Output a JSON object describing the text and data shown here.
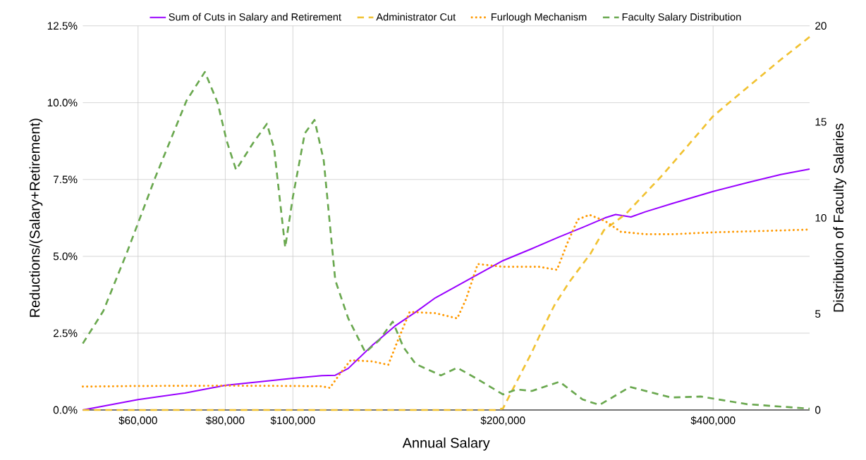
{
  "chart_data": {
    "type": "line",
    "xlabel": "Annual Salary",
    "ylabel": "Reductions/(Salary+Retirement)",
    "y2label": "Distribution of Faculty Salaries",
    "log": "x",
    "grid": true,
    "legend": "top",
    "marker": "none",
    "xlim": [
      50000,
      550000
    ],
    "xticks": [
      {
        "value": 60000,
        "label": "$60,000"
      },
      {
        "value": 80000,
        "label": "$80,000"
      },
      {
        "value": 100000,
        "label": "$100,000"
      },
      {
        "value": 200000,
        "label": "$200,000"
      },
      {
        "value": 400000,
        "label": "$400,000"
      }
    ],
    "ylim": [
      0,
      12.5
    ],
    "yticks": [
      {
        "value": 0,
        "label": "0.0%"
      },
      {
        "value": 2.5,
        "label": "2.5%"
      },
      {
        "value": 5,
        "label": "5.0%"
      },
      {
        "value": 7.5,
        "label": "7.5%"
      },
      {
        "value": 10,
        "label": "10.0%"
      },
      {
        "value": 12.5,
        "label": "12.5%"
      }
    ],
    "y2lim": [
      0,
      20
    ],
    "y2ticks": [
      0,
      5,
      10,
      15,
      20
    ],
    "series": [
      {
        "name": "Sum of Cuts in Salary and Retirement",
        "color": "#9900ff",
        "line_style": "solid",
        "x": [
          50000,
          60000,
          70000,
          80000,
          90000,
          100000,
          110000,
          115000,
          120000,
          130000,
          140000,
          150000,
          160000,
          180000,
          200000,
          220000,
          240000,
          260000,
          280000,
          290000,
          305000,
          320000,
          350000,
          400000,
          450000,
          500000,
          550000
        ],
        "values": [
          0,
          0.34,
          0.55,
          0.8,
          0.92,
          1.03,
          1.12,
          1.13,
          1.35,
          2.11,
          2.73,
          3.19,
          3.65,
          4.29,
          4.86,
          5.25,
          5.62,
          5.94,
          6.25,
          6.36,
          6.28,
          6.45,
          6.72,
          7.11,
          7.41,
          7.66,
          7.84
        ]
      },
      {
        "name": "Administrator Cut",
        "color": "#f1c232",
        "line_style": "dashed",
        "x": [
          50000,
          100000,
          195000,
          200000,
          203000,
          220000,
          228000,
          237000,
          249000,
          267000,
          279000,
          300000,
          339000,
          400000,
          448000,
          500000,
          550000
        ],
        "values": [
          0,
          0,
          0,
          0.05,
          0.34,
          1.88,
          2.64,
          3.41,
          4.17,
          5.09,
          5.85,
          6.38,
          7.66,
          9.56,
          10.5,
          11.4,
          12.14
        ]
      },
      {
        "name": "Furlough Mechanism",
        "color": "#ff9900",
        "line_style": "dotted",
        "x": [
          50000,
          60000,
          80000,
          100000,
          110000,
          113000,
          117000,
          121000,
          130000,
          137000,
          141000,
          147000,
          160000,
          172000,
          177000,
          184000,
          200000,
          225000,
          239000,
          247000,
          256000,
          266000,
          280000,
          295000,
          320000,
          350000,
          400000,
          480000,
          550000
        ],
        "values": [
          0.76,
          0.78,
          0.79,
          0.78,
          0.77,
          0.72,
          1.2,
          1.62,
          1.58,
          1.47,
          2.2,
          3.19,
          3.15,
          2.98,
          3.6,
          4.75,
          4.66,
          4.66,
          4.56,
          5.4,
          6.2,
          6.35,
          6.15,
          5.8,
          5.72,
          5.72,
          5.78,
          5.83,
          5.87
        ]
      },
      {
        "name": "Faculty Salary Distribution",
        "color": "#6aa84f",
        "line_style": "dashed",
        "axis": "y2",
        "x": [
          50000,
          53500,
          57900,
          63500,
          70400,
          74800,
          78000,
          80400,
          82900,
          87700,
          91800,
          94000,
          97500,
          100000,
          104000,
          107400,
          110700,
          115000,
          120000,
          127000,
          133000,
          139000,
          144000,
          150000,
          163000,
          172000,
          183000,
          200000,
          209000,
          220000,
          241000,
          260000,
          275000,
          304000,
          348000,
          384000,
          448000,
          550000
        ],
        "values": [
          3.46,
          5.15,
          8.24,
          12.1,
          16.1,
          17.6,
          16.0,
          14.0,
          12.5,
          13.9,
          14.9,
          13.6,
          8.46,
          11.1,
          14.4,
          15.1,
          13.0,
          6.76,
          4.78,
          3.0,
          3.64,
          4.6,
          3.27,
          2.39,
          1.8,
          2.2,
          1.65,
          0.81,
          1.07,
          0.99,
          1.47,
          0.55,
          0.26,
          1.2,
          0.65,
          0.7,
          0.3,
          0.07
        ]
      }
    ]
  }
}
